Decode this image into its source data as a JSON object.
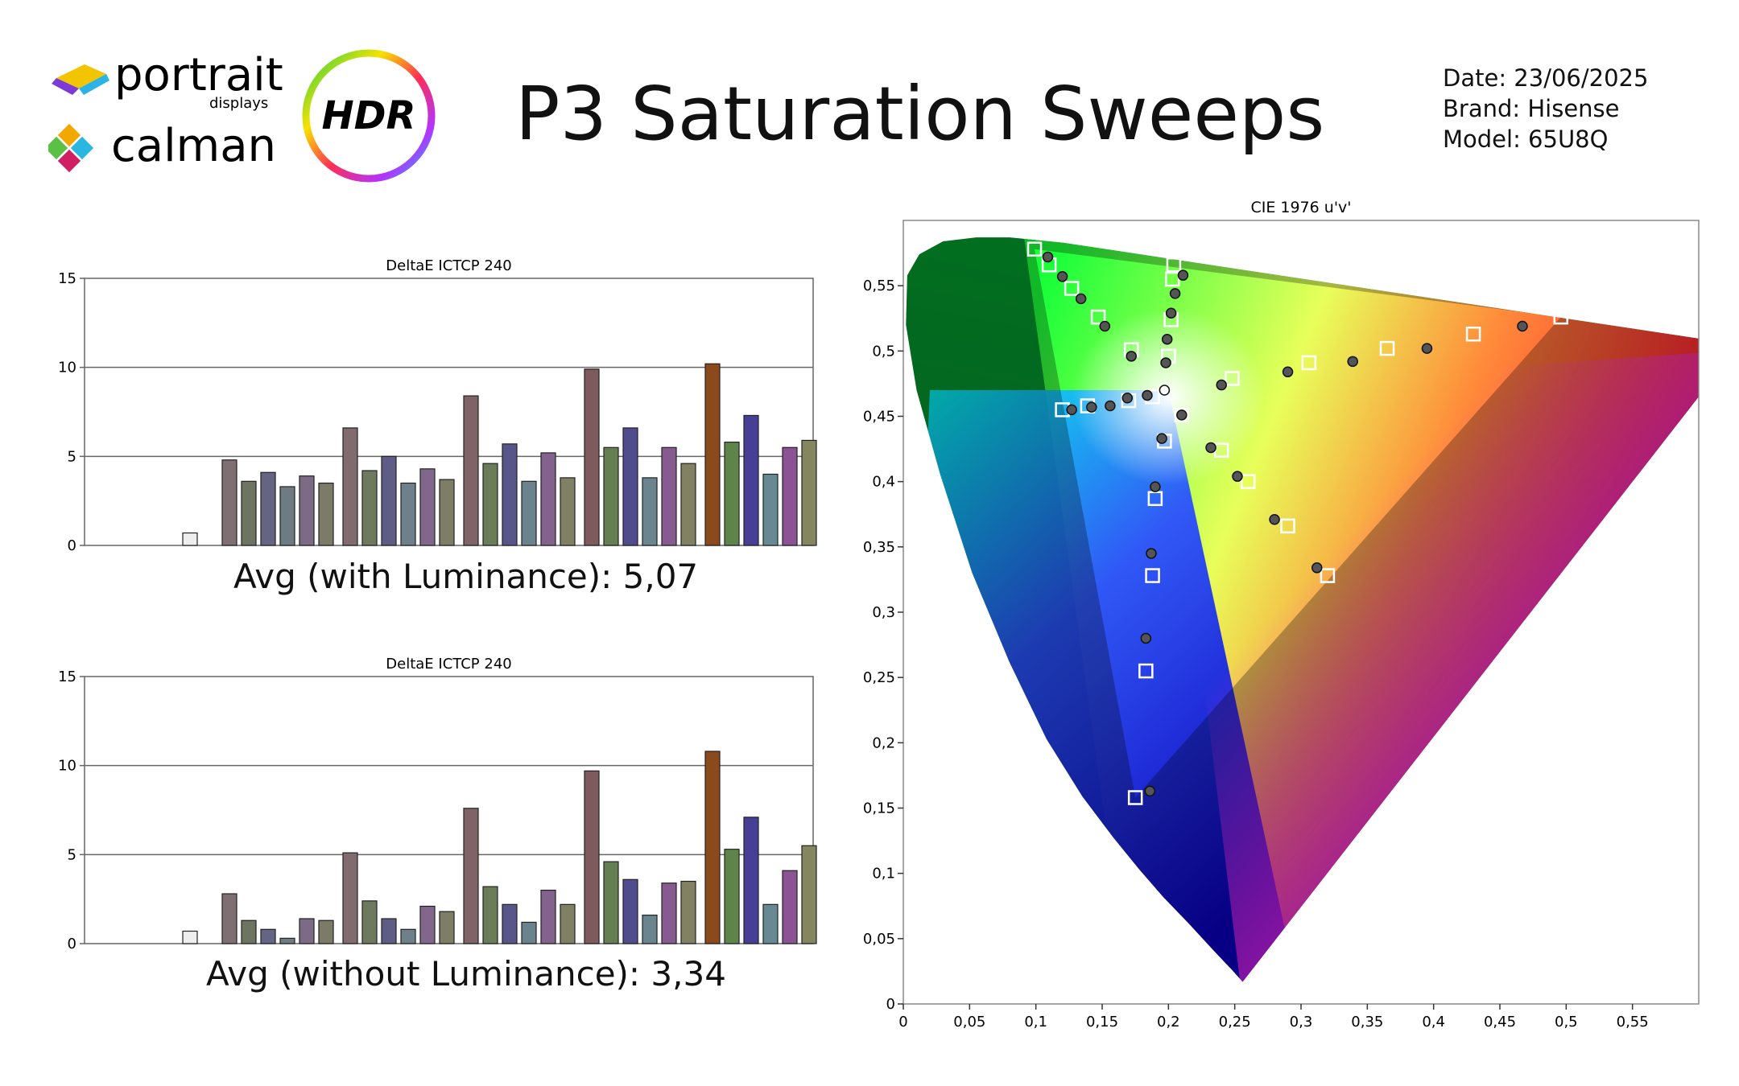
{
  "header": {
    "brand_top": "portrait",
    "brand_top_sub": "displays",
    "brand_bottom": "calman",
    "badge": "HDR",
    "title": "P3 Saturation Sweeps",
    "date": "Date: 23/06/2025",
    "brand": "Brand: Hisense",
    "model": "Model: 65U8Q"
  },
  "colors": {
    "bar_gray": "#7e6f72",
    "bar_green": "#6e7f5a",
    "bar_blue": "#5c5a85",
    "bar_cyan": "#6e8088",
    "bar_magenta": "#83668a",
    "bar_yellow": "#80806a",
    "bar_red": "#7a4a2e",
    "grid": "#666666"
  },
  "summary": {
    "avg_with": "Avg (with Luminance): 5,07",
    "avg_without": "Avg (without Luminance): 3,34"
  },
  "chart_data": [
    {
      "type": "bar",
      "title": "DeltaE ICTCP 240",
      "ylim": [
        0,
        15
      ],
      "yticks": [
        "0",
        "5",
        "10",
        "15"
      ],
      "grid": true,
      "groups": [
        {
          "values": [
            0.7
          ],
          "colors": [
            "#eeeeee"
          ]
        },
        {
          "values": [
            4.8,
            3.6,
            4.1,
            3.3,
            3.9,
            3.5
          ],
          "colors": [
            "#7e7072",
            "#6e7462",
            "#656482",
            "#6e7b83",
            "#7c6b84",
            "#7b7b68"
          ]
        },
        {
          "values": [
            6.6,
            4.2,
            5.0,
            3.5,
            4.3,
            3.7
          ],
          "colors": [
            "#806b6e",
            "#6d7a5e",
            "#5f5d86",
            "#6e8089",
            "#80678b",
            "#7e7e66"
          ]
        },
        {
          "values": [
            8.4,
            4.6,
            5.7,
            3.6,
            5.2,
            3.8
          ],
          "colors": [
            "#806366",
            "#6a7d58",
            "#58558a",
            "#6c828c",
            "#84628e",
            "#808064"
          ]
        },
        {
          "values": [
            9.9,
            5.5,
            6.6,
            3.8,
            5.5,
            4.6
          ],
          "colors": [
            "#7e5a5c",
            "#667f52",
            "#504c8e",
            "#6a858e",
            "#875b90",
            "#828262"
          ]
        },
        {
          "values": [
            10.2,
            5.8,
            7.3,
            4.0,
            5.5,
            5.9
          ],
          "colors": [
            "#8a4a1c",
            "#5f844a",
            "#463f95",
            "#678a92",
            "#8b5294",
            "#858560"
          ]
        }
      ]
    },
    {
      "type": "bar",
      "title": "DeltaE ICTCP 240",
      "ylim": [
        0,
        15
      ],
      "yticks": [
        "0",
        "5",
        "10",
        "15"
      ],
      "grid": true,
      "groups": [
        {
          "values": [
            0.7
          ],
          "colors": [
            "#eeeeee"
          ]
        },
        {
          "values": [
            2.8,
            1.3,
            0.8,
            0.3,
            1.4,
            1.3
          ],
          "colors": [
            "#7e7072",
            "#6e7462",
            "#656482",
            "#6e7b83",
            "#7c6b84",
            "#7b7b68"
          ]
        },
        {
          "values": [
            5.1,
            2.4,
            1.4,
            0.8,
            2.1,
            1.8
          ],
          "colors": [
            "#806b6e",
            "#6d7a5e",
            "#5f5d86",
            "#6e8089",
            "#80678b",
            "#7e7e66"
          ]
        },
        {
          "values": [
            7.6,
            3.2,
            2.2,
            1.2,
            3.0,
            2.2
          ],
          "colors": [
            "#806366",
            "#6a7d58",
            "#58558a",
            "#6c828c",
            "#84628e",
            "#808064"
          ]
        },
        {
          "values": [
            9.7,
            4.6,
            3.6,
            1.6,
            3.4,
            3.5
          ],
          "colors": [
            "#7e5a5c",
            "#667f52",
            "#504c8e",
            "#6a858e",
            "#875b90",
            "#828262"
          ]
        },
        {
          "values": [
            10.8,
            5.3,
            7.1,
            2.2,
            4.1,
            5.5
          ],
          "colors": [
            "#8a4a1c",
            "#5f844a",
            "#463f95",
            "#678a92",
            "#8b5294",
            "#858560"
          ]
        }
      ]
    },
    {
      "type": "scatter",
      "title": "CIE 1976 u'v'",
      "xlim": [
        0,
        0.6
      ],
      "ylim": [
        0,
        0.6
      ],
      "xticks": [
        "0",
        "0,05",
        "0,1",
        "0,15",
        "0,2",
        "0,25",
        "0,3",
        "0,35",
        "0,4",
        "0,45",
        "0,5",
        "0,55"
      ],
      "yticks": [
        "0",
        "0,05",
        "0,1",
        "0,15",
        "0,2",
        "0,25",
        "0,3",
        "0,35",
        "0,4",
        "0,45",
        "0,5",
        "0,55"
      ],
      "gamut": {
        "red": [
          0.496,
          0.526
        ],
        "green": [
          0.099,
          0.578
        ],
        "blue": [
          0.175,
          0.158
        ],
        "white": [
          0.198,
          0.468
        ]
      },
      "series": [
        {
          "marker": "target-square",
          "points": [
            [
              0.198,
              0.468
            ],
            [
              0.248,
              0.479
            ],
            [
              0.306,
              0.491
            ],
            [
              0.365,
              0.502
            ],
            [
              0.43,
              0.513
            ],
            [
              0.496,
              0.526
            ],
            [
              0.2,
              0.496
            ],
            [
              0.202,
              0.524
            ],
            [
              0.203,
              0.555
            ],
            [
              0.204,
              0.566
            ],
            [
              0.172,
              0.501
            ],
            [
              0.147,
              0.526
            ],
            [
              0.127,
              0.548
            ],
            [
              0.11,
              0.566
            ],
            [
              0.099,
              0.578
            ],
            [
              0.188,
              0.465
            ],
            [
              0.17,
              0.462
            ],
            [
              0.139,
              0.458
            ],
            [
              0.12,
              0.455
            ],
            [
              0.197,
              0.431
            ],
            [
              0.19,
              0.387
            ],
            [
              0.188,
              0.328
            ],
            [
              0.183,
              0.255
            ],
            [
              0.175,
              0.158
            ],
            [
              0.21,
              0.451
            ],
            [
              0.24,
              0.424
            ],
            [
              0.26,
              0.4
            ],
            [
              0.29,
              0.366
            ],
            [
              0.32,
              0.328
            ]
          ]
        },
        {
          "marker": "measured-circle",
          "points": [
            [
              0.197,
              0.47
            ],
            [
              0.24,
              0.474
            ],
            [
              0.29,
              0.484
            ],
            [
              0.339,
              0.492
            ],
            [
              0.395,
              0.502
            ],
            [
              0.467,
              0.519
            ],
            [
              0.198,
              0.491
            ],
            [
              0.199,
              0.509
            ],
            [
              0.202,
              0.529
            ],
            [
              0.205,
              0.544
            ],
            [
              0.211,
              0.558
            ],
            [
              0.172,
              0.496
            ],
            [
              0.152,
              0.519
            ],
            [
              0.134,
              0.54
            ],
            [
              0.12,
              0.557
            ],
            [
              0.109,
              0.572
            ],
            [
              0.184,
              0.466
            ],
            [
              0.169,
              0.464
            ],
            [
              0.156,
              0.458
            ],
            [
              0.142,
              0.457
            ],
            [
              0.127,
              0.455
            ],
            [
              0.195,
              0.433
            ],
            [
              0.19,
              0.396
            ],
            [
              0.187,
              0.345
            ],
            [
              0.183,
              0.28
            ],
            [
              0.186,
              0.163
            ],
            [
              0.21,
              0.451
            ],
            [
              0.232,
              0.426
            ],
            [
              0.252,
              0.404
            ],
            [
              0.28,
              0.371
            ],
            [
              0.312,
              0.334
            ]
          ]
        }
      ]
    }
  ]
}
